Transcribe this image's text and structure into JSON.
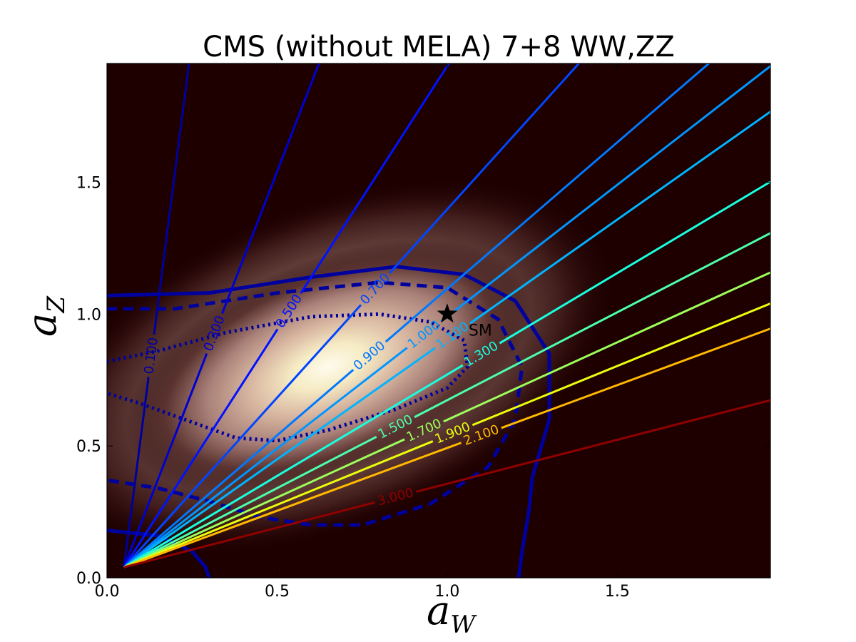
{
  "chart_data": {
    "type": "contour",
    "title": "CMS (without MELA) 7+8 WW,ZZ",
    "xlabel": "a",
    "xlabel_sub": "W",
    "ylabel": "a",
    "ylabel_sub": "Z",
    "xlim": [
      0.0,
      1.95
    ],
    "ylim": [
      0.0,
      1.95
    ],
    "xticks": [
      0.0,
      0.5,
      1.0,
      1.5
    ],
    "yticks": [
      0.0,
      0.5,
      1.0,
      1.5
    ],
    "xtick_labels": [
      "0.0",
      "0.5",
      "1.0",
      "1.5"
    ],
    "ytick_labels": [
      "0.0",
      "0.5",
      "1.0",
      "1.5"
    ],
    "background": {
      "colormap": "pink",
      "peak": {
        "x": 0.65,
        "y": 0.8
      },
      "base_color": "#1e0000",
      "peak_color": "#fffcee"
    },
    "ratio_lines": {
      "origin": {
        "x": 0.05,
        "y": 0.04
      },
      "lines": [
        {
          "label": "0.100",
          "value": 0.1,
          "color": "#00009f"
        },
        {
          "label": "0.300",
          "value": 0.3,
          "color": "#0000d0"
        },
        {
          "label": "0.500",
          "value": 0.5,
          "color": "#0012ff"
        },
        {
          "label": "0.700",
          "value": 0.7,
          "color": "#0045ff"
        },
        {
          "label": "0.900",
          "value": 0.9,
          "color": "#0078ff"
        },
        {
          "label": "1.000",
          "value": 1.0,
          "color": "#0096ff"
        },
        {
          "label": "1.100",
          "value": 1.1,
          "color": "#00b4ff"
        },
        {
          "label": "1.300",
          "value": 1.3,
          "color": "#19ffde"
        },
        {
          "label": "1.500",
          "value": 1.5,
          "color": "#4cffac"
        },
        {
          "label": "1.700",
          "value": 1.7,
          "color": "#9cff5a"
        },
        {
          "label": "1.900",
          "value": 1.9,
          "color": "#ebff0c"
        },
        {
          "label": "2.100",
          "value": 2.1,
          "color": "#ffb900"
        },
        {
          "label": "3.000",
          "value": 3.0,
          "color": "#8f0000"
        }
      ]
    },
    "confidence_contours": {
      "color": "#00009e",
      "regions": [
        {
          "style": "dotted",
          "points": [
            [
              0.0,
              0.82
            ],
            [
              0.15,
              0.86
            ],
            [
              0.35,
              0.93
            ],
            [
              0.6,
              0.99
            ],
            [
              0.8,
              1.0
            ],
            [
              0.95,
              0.97
            ],
            [
              1.05,
              0.9
            ],
            [
              1.06,
              0.8
            ],
            [
              1.0,
              0.72
            ],
            [
              0.85,
              0.64
            ],
            [
              0.65,
              0.56
            ],
            [
              0.5,
              0.52
            ],
            [
              0.38,
              0.53
            ],
            [
              0.25,
              0.59
            ],
            [
              0.1,
              0.66
            ],
            [
              0.0,
              0.7
            ]
          ]
        },
        {
          "style": "dashed",
          "points": [
            [
              0.0,
              1.02
            ],
            [
              0.2,
              1.02
            ],
            [
              0.5,
              1.08
            ],
            [
              0.8,
              1.12
            ],
            [
              1.0,
              1.1
            ],
            [
              1.15,
              0.98
            ],
            [
              1.22,
              0.8
            ],
            [
              1.2,
              0.6
            ],
            [
              1.12,
              0.42
            ],
            [
              0.95,
              0.28
            ],
            [
              0.75,
              0.2
            ],
            [
              0.6,
              0.2
            ],
            [
              0.45,
              0.23
            ],
            [
              0.3,
              0.29
            ],
            [
              0.15,
              0.34
            ],
            [
              0.0,
              0.37
            ]
          ]
        },
        {
          "style": "solid",
          "points": [
            [
              0.0,
              1.07
            ],
            [
              0.3,
              1.08
            ],
            [
              0.6,
              1.14
            ],
            [
              0.85,
              1.18
            ],
            [
              1.05,
              1.15
            ],
            [
              1.2,
              1.05
            ],
            [
              1.3,
              0.85
            ],
            [
              1.3,
              0.6
            ],
            [
              1.25,
              0.38
            ],
            [
              1.24,
              0.25
            ],
            [
              1.22,
              0.1
            ],
            [
              1.21,
              0.0
            ]
          ]
        },
        {
          "style": "solid",
          "points": [
            [
              0.0,
              0.18
            ],
            [
              0.15,
              0.16
            ],
            [
              0.25,
              0.1
            ],
            [
              0.29,
              0.04
            ],
            [
              0.3,
              0.0
            ]
          ]
        }
      ]
    },
    "marker": {
      "label": "SM",
      "x": 1.0,
      "y": 1.0,
      "symbol": "star"
    }
  }
}
